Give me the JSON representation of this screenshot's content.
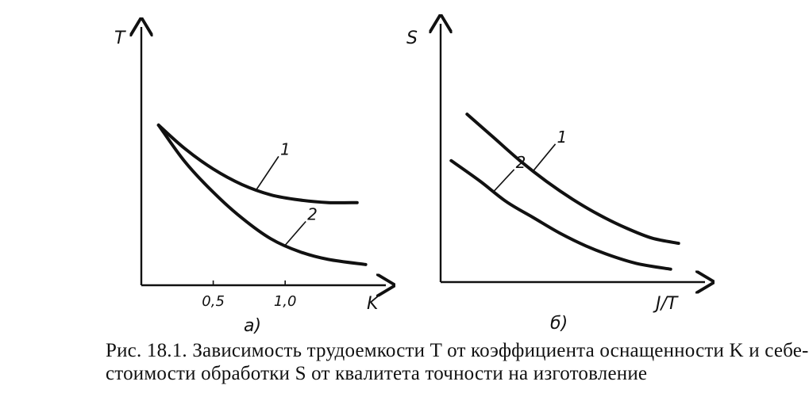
{
  "chart_data": [
    {
      "type": "line",
      "panel_label": "а)",
      "ylabel": "T",
      "xlabel": "K",
      "x_ticks": [
        "0,5",
        "1,0"
      ],
      "x_tick_values": [
        0.5,
        1.0
      ],
      "xlim": [
        0,
        1.7
      ],
      "ylim": [
        0,
        1.0
      ],
      "grid": false,
      "series": [
        {
          "name": "1",
          "x": [
            0.12,
            0.3,
            0.5,
            0.7,
            0.9,
            1.1,
            1.3,
            1.5
          ],
          "y": [
            0.62,
            0.53,
            0.45,
            0.39,
            0.35,
            0.33,
            0.32,
            0.32
          ]
        },
        {
          "name": "2",
          "x": [
            0.12,
            0.3,
            0.5,
            0.7,
            0.9,
            1.1,
            1.3,
            1.56
          ],
          "y": [
            0.62,
            0.48,
            0.36,
            0.26,
            0.18,
            0.13,
            0.1,
            0.08
          ]
        }
      ]
    },
    {
      "type": "line",
      "panel_label": "б)",
      "ylabel": "S",
      "xlabel": "J/T",
      "xlim": [
        0,
        1.0
      ],
      "ylim": [
        0,
        1.0
      ],
      "grid": false,
      "series": [
        {
          "name": "1",
          "x": [
            0.1,
            0.2,
            0.3,
            0.4,
            0.5,
            0.6,
            0.7,
            0.8,
            0.9
          ],
          "y": [
            0.65,
            0.56,
            0.47,
            0.39,
            0.32,
            0.26,
            0.21,
            0.17,
            0.15
          ]
        },
        {
          "name": "2",
          "x": [
            0.04,
            0.15,
            0.25,
            0.35,
            0.45,
            0.55,
            0.65,
            0.75,
            0.87
          ],
          "y": [
            0.47,
            0.39,
            0.31,
            0.25,
            0.19,
            0.14,
            0.1,
            0.07,
            0.05
          ]
        }
      ]
    }
  ],
  "caption": {
    "line1": "Рис. 18.1. Зависимость трудоемкости T от коэффициента оснащенности K и себе-",
    "line2": "стоимости обработки S от квалитета точности на изготовление"
  }
}
